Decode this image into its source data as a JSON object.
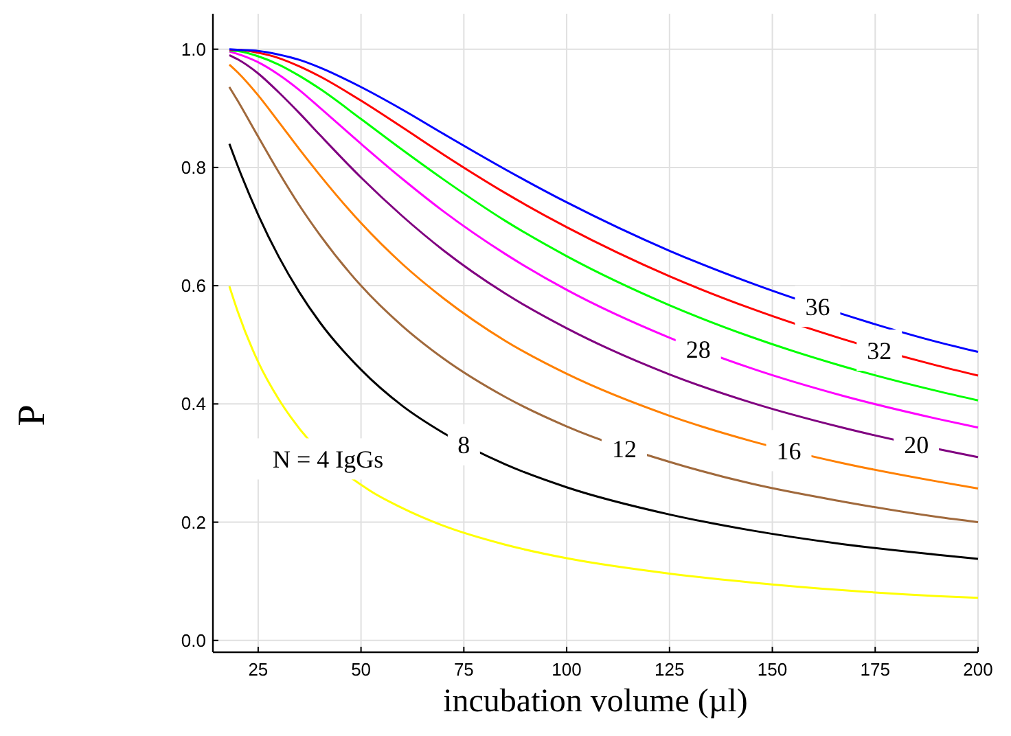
{
  "chart_data": {
    "type": "line",
    "xlabel": "incubation volume (µl)",
    "ylabel": "P",
    "x": [
      18,
      20,
      25,
      30,
      35,
      40,
      50,
      60,
      70,
      85,
      100,
      125,
      145,
      167,
      190,
      200
    ],
    "series": [
      {
        "color": "#ffff00",
        "x": [
          18,
          20,
          25,
          30,
          33,
          52,
          60,
          70,
          85,
          100,
          125,
          145,
          167,
          190,
          200
        ],
        "values": [
          0.599,
          0.557,
          0.471,
          0.408,
          0.377,
          0.254,
          0.224,
          0.194,
          0.162,
          0.139,
          0.113,
          0.098,
          0.085,
          0.075,
          0.072
        ]
      },
      {
        "color": "#000000",
        "values": [
          0.84,
          0.803,
          0.72,
          0.649,
          0.589,
          0.538,
          0.458,
          0.397,
          0.351,
          0.298,
          0.259,
          0.213,
          0.186,
          0.163,
          0.145,
          0.138
        ]
      },
      {
        "color": "#a0693c",
        "values": [
          0.936,
          0.913,
          0.852,
          0.792,
          0.736,
          0.686,
          0.6,
          0.532,
          0.477,
          0.412,
          0.362,
          0.302,
          0.265,
          0.235,
          0.209,
          0.2
        ]
      },
      {
        "color": "#ff8000",
        "values": [
          0.974,
          0.961,
          0.922,
          0.877,
          0.831,
          0.787,
          0.706,
          0.637,
          0.579,
          0.507,
          0.451,
          0.38,
          0.337,
          0.3,
          0.269,
          0.257
        ]
      },
      {
        "color": "#800080",
        "values": [
          0.99,
          0.983,
          0.959,
          0.927,
          0.892,
          0.855,
          0.783,
          0.718,
          0.66,
          0.587,
          0.528,
          0.45,
          0.402,
          0.36,
          0.324,
          0.31
        ]
      },
      {
        "color": "#ff00ff",
        "values": [
          0.996,
          0.992,
          0.978,
          0.957,
          0.931,
          0.901,
          0.84,
          0.781,
          0.726,
          0.654,
          0.593,
          0.512,
          0.46,
          0.414,
          0.375,
          0.36
        ]
      },
      {
        "color": "#00ff00",
        "values": [
          0.998,
          0.997,
          0.988,
          0.974,
          0.955,
          0.933,
          0.882,
          0.83,
          0.78,
          0.71,
          0.65,
          0.567,
          0.513,
          0.464,
          0.422,
          0.406
        ]
      },
      {
        "color": "#ff0000",
        "values": [
          0.999,
          0.999,
          0.994,
          0.985,
          0.971,
          0.954,
          0.913,
          0.868,
          0.822,
          0.757,
          0.699,
          0.616,
          0.561,
          0.51,
          0.465,
          0.448
        ]
      },
      {
        "color": "#0000ff",
        "values": [
          1.0,
          0.999,
          0.997,
          0.991,
          0.982,
          0.969,
          0.936,
          0.898,
          0.857,
          0.797,
          0.741,
          0.659,
          0.604,
          0.552,
          0.505,
          0.488
        ]
      }
    ],
    "xlim": [
      14,
      200
    ],
    "xticks": [
      25,
      50,
      75,
      100,
      125,
      150,
      175,
      200
    ],
    "ylim": [
      -0.02,
      1.06
    ],
    "yticks": [
      {
        "value": 0,
        "label": "0.0"
      },
      0.2,
      0.4,
      0.6,
      0.8,
      {
        "value": 1,
        "label": "1.0"
      }
    ],
    "grid": true,
    "marker": "none",
    "line_style": "solid",
    "annotations": [
      {
        "text": "N = 4 IgGs",
        "x": 42,
        "y": 0.307
      },
      {
        "text": "8",
        "x": 75,
        "y": 0.331
      },
      {
        "text": "12",
        "x": 114,
        "y": 0.325
      },
      {
        "text": "16",
        "x": 154,
        "y": 0.321
      },
      {
        "text": "20",
        "x": 185,
        "y": 0.331
      },
      {
        "text": "28",
        "x": 132,
        "y": 0.493
      },
      {
        "text": "32",
        "x": 176,
        "y": 0.491
      },
      {
        "text": "36",
        "x": 161,
        "y": 0.565
      }
    ]
  }
}
